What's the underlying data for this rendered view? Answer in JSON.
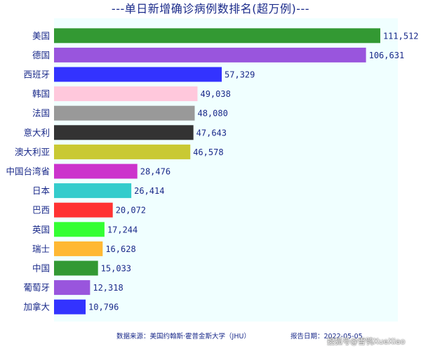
{
  "chart_data": {
    "type": "bar",
    "orientation": "horizontal",
    "title": "---单日新增确诊病例数排名(超万例)---",
    "categories": [
      "美国",
      "德国",
      "西班牙",
      "韩国",
      "法国",
      "意大利",
      "澳大利亚",
      "中国台湾省",
      "日本",
      "巴西",
      "英国",
      "瑞士",
      "中国",
      "葡萄牙",
      "加拿大"
    ],
    "values": [
      111512,
      106631,
      57329,
      49038,
      48080,
      47643,
      46578,
      28476,
      26414,
      20072,
      17244,
      16628,
      15033,
      12318,
      10796
    ],
    "value_labels": [
      "111,512",
      "106,631",
      "57,329",
      "49,038",
      "48,080",
      "47,643",
      "46,578",
      "28,476",
      "26,414",
      "20,072",
      "17,244",
      "16,628",
      "15,033",
      "12,318",
      "10,796"
    ],
    "colors": [
      "#339933",
      "#9955dd",
      "#3333ff",
      "#ffc8dc",
      "#999999",
      "#333333",
      "#c9c933",
      "#cc33cc",
      "#33cccc",
      "#ff3333",
      "#33ff33",
      "#ffb833",
      "#339933",
      "#9955dd",
      "#3333ff"
    ],
    "xlim": [
      0,
      112000
    ],
    "grid": false,
    "plot_background": "#f0ffff"
  },
  "footer": {
    "source": "数据来源：美国约翰斯·霍普金斯大学（JHU）",
    "date": "报告日期：2022-05-05"
  },
  "watermark": "搜狐号@雪鸮XueXiao"
}
